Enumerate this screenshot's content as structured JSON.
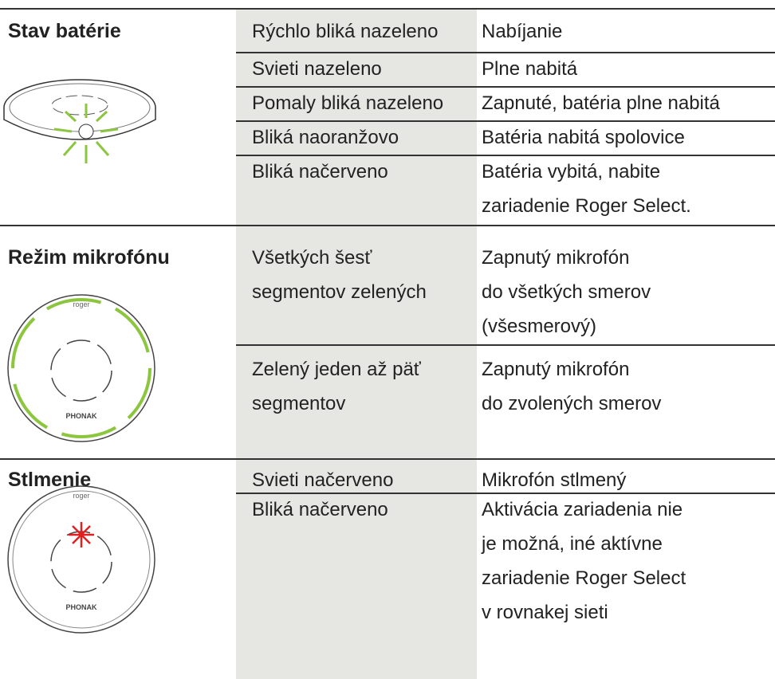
{
  "sections": [
    {
      "label": "Stav batérie",
      "rows": [
        {
          "indicator": [
            "Rýchlo bliká nazeleno"
          ],
          "meaning": [
            "Nabíjanie"
          ]
        },
        {
          "indicator": [
            "Svieti nazeleno"
          ],
          "meaning": [
            "Plne nabitá"
          ]
        },
        {
          "indicator": [
            "Pomaly bliká nazeleno"
          ],
          "meaning": [
            "Zapnuté, batéria plne nabitá"
          ]
        },
        {
          "indicator": [
            "Bliká naoranžovo"
          ],
          "meaning": [
            "Batéria nabitá spolovice"
          ]
        },
        {
          "indicator": [
            "Bliká načerveno"
          ],
          "meaning": [
            "Batéria vybitá, nabite",
            "zariadenie Roger Select."
          ]
        }
      ]
    },
    {
      "label": "Režim mikrofónu",
      "rows": [
        {
          "indicator": [
            "Všetkých šesť",
            "segmentov zelených"
          ],
          "meaning": [
            "Zapnutý mikrofón",
            "do všetkých smerov",
            "(všesmerový)"
          ]
        },
        {
          "indicator": [
            "Zelený jeden až päť",
            "segmentov"
          ],
          "meaning": [
            "Zapnutý mikrofón",
            "do zvolených smerov"
          ]
        }
      ]
    },
    {
      "label": "Stlmenie",
      "rows": [
        {
          "indicator": [
            "Svieti načerveno"
          ],
          "meaning": [
            "Mikrofón stlmený"
          ]
        },
        {
          "indicator": [
            "Bliká načerveno"
          ],
          "meaning": [
            "Aktivácia zariadenia nie",
            "je možná, iné aktívne",
            "zariadenie Roger Select",
            "v rovnakej sieti"
          ]
        }
      ]
    }
  ]
}
